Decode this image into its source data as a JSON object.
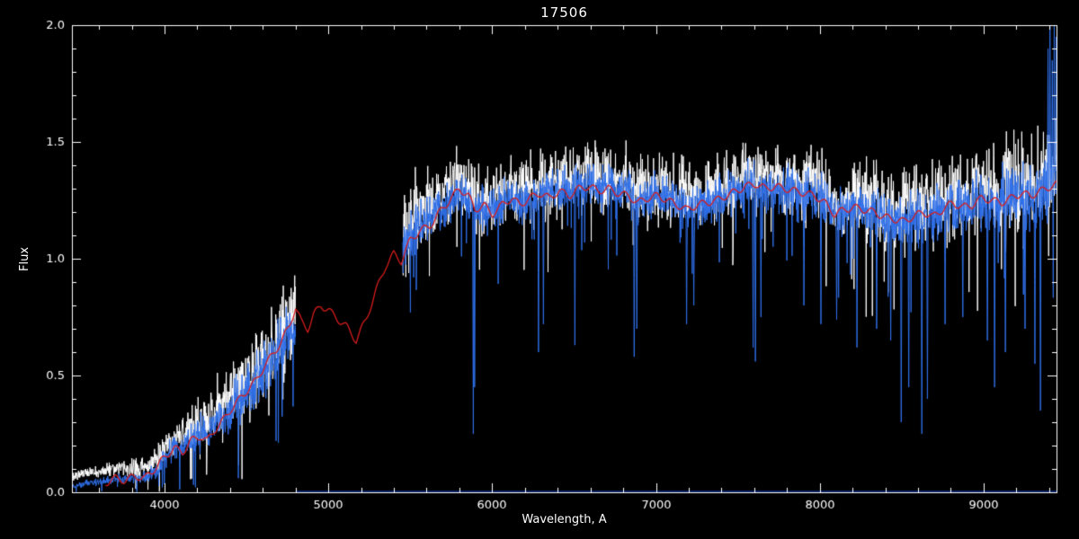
{
  "chart_data": {
    "type": "line",
    "title": "17506",
    "xlabel": "Wavelength, A",
    "ylabel": "Flux",
    "xlim": [
      3435,
      9445
    ],
    "ylim": [
      0,
      2
    ],
    "xticks": [
      4000,
      5000,
      6000,
      7000,
      8000,
      9000
    ],
    "xtick_labels": [
      "4000",
      "5000",
      "6000",
      "7000",
      "8000",
      "9000"
    ],
    "yticks": [
      0.0,
      0.5,
      1.0,
      1.5,
      2.0
    ],
    "ytick_labels": [
      "0.0",
      "0.5",
      "1.0",
      "1.5",
      "2.0"
    ],
    "x_minor_step": 200,
    "y_minor_step": 0.1,
    "grid": false,
    "legend": "none",
    "background": "#000000",
    "axis_color": "#ffffff",
    "sample_step": 2,
    "seed": 17506,
    "model": {
      "name": "template-model",
      "color": "#d81c1c",
      "wiggle_amp": 0.015,
      "wiggle_period": 15,
      "anchors": [
        [
          3640,
          0.04
        ],
        [
          3700,
          0.06
        ],
        [
          3760,
          0.05
        ],
        [
          3820,
          0.07
        ],
        [
          3880,
          0.06
        ],
        [
          3940,
          0.1
        ],
        [
          4000,
          0.15
        ],
        [
          4060,
          0.19
        ],
        [
          4110,
          0.17
        ],
        [
          4160,
          0.22
        ],
        [
          4220,
          0.24
        ],
        [
          4260,
          0.22
        ],
        [
          4310,
          0.27
        ],
        [
          4360,
          0.31
        ],
        [
          4410,
          0.36
        ],
        [
          4460,
          0.4
        ],
        [
          4510,
          0.44
        ],
        [
          4560,
          0.48
        ],
        [
          4610,
          0.54
        ],
        [
          4660,
          0.59
        ],
        [
          4710,
          0.64
        ],
        [
          4760,
          0.71
        ],
        [
          4800,
          0.79
        ],
        [
          4835,
          0.73
        ],
        [
          4875,
          0.7
        ],
        [
          4910,
          0.76
        ],
        [
          4955,
          0.8
        ],
        [
          5000,
          0.78
        ],
        [
          5060,
          0.74
        ],
        [
          5110,
          0.71
        ],
        [
          5170,
          0.65
        ],
        [
          5230,
          0.74
        ],
        [
          5290,
          0.86
        ],
        [
          5350,
          0.97
        ],
        [
          5400,
          1.02
        ],
        [
          5445,
          0.99
        ],
        [
          5500,
          1.08
        ],
        [
          5560,
          1.12
        ],
        [
          5620,
          1.14
        ],
        [
          5680,
          1.2
        ],
        [
          5740,
          1.25
        ],
        [
          5800,
          1.3
        ],
        [
          5855,
          1.27
        ],
        [
          5895,
          1.21
        ],
        [
          5950,
          1.23
        ],
        [
          6000,
          1.19
        ],
        [
          6060,
          1.23
        ],
        [
          6120,
          1.26
        ],
        [
          6170,
          1.23
        ],
        [
          6230,
          1.26
        ],
        [
          6290,
          1.28
        ],
        [
          6350,
          1.26
        ],
        [
          6410,
          1.29
        ],
        [
          6470,
          1.27
        ],
        [
          6530,
          1.3
        ],
        [
          6590,
          1.31
        ],
        [
          6650,
          1.29
        ],
        [
          6710,
          1.3
        ],
        [
          6770,
          1.28
        ],
        [
          6830,
          1.27
        ],
        [
          6890,
          1.24
        ],
        [
          6950,
          1.26
        ],
        [
          7010,
          1.27
        ],
        [
          7070,
          1.25
        ],
        [
          7130,
          1.23
        ],
        [
          7190,
          1.21
        ],
        [
          7250,
          1.23
        ],
        [
          7310,
          1.24
        ],
        [
          7370,
          1.25
        ],
        [
          7430,
          1.27
        ],
        [
          7490,
          1.29
        ],
        [
          7550,
          1.31
        ],
        [
          7610,
          1.32
        ],
        [
          7670,
          1.3
        ],
        [
          7730,
          1.31
        ],
        [
          7790,
          1.3
        ],
        [
          7850,
          1.29
        ],
        [
          7910,
          1.28
        ],
        [
          7970,
          1.27
        ],
        [
          8030,
          1.24
        ],
        [
          8090,
          1.19
        ],
        [
          8150,
          1.21
        ],
        [
          8210,
          1.22
        ],
        [
          8270,
          1.21
        ],
        [
          8330,
          1.2
        ],
        [
          8390,
          1.18
        ],
        [
          8450,
          1.17
        ],
        [
          8510,
          1.16
        ],
        [
          8570,
          1.18
        ],
        [
          8630,
          1.2
        ],
        [
          8690,
          1.18
        ],
        [
          8750,
          1.21
        ],
        [
          8810,
          1.24
        ],
        [
          8870,
          1.22
        ],
        [
          8930,
          1.23
        ],
        [
          8990,
          1.26
        ],
        [
          9050,
          1.25
        ],
        [
          9110,
          1.24
        ],
        [
          9170,
          1.26
        ],
        [
          9230,
          1.28
        ],
        [
          9290,
          1.27
        ],
        [
          9350,
          1.29
        ],
        [
          9410,
          1.31
        ],
        [
          9445,
          1.32
        ]
      ]
    },
    "observed": {
      "name": "observed-spectrum",
      "color": "#2f6fe8",
      "offset": 0,
      "amp_scale": 1.0,
      "deep_dip_chance": 0.025,
      "deep_dip_scale": 2.2,
      "segments": [
        {
          "range": [
            3435,
            4800
          ],
          "continuum": [
            [
              3435,
              0.02
            ],
            [
              3520,
              0.04
            ],
            [
              3600,
              0.04
            ],
            [
              3700,
              0.06
            ],
            [
              3800,
              0.06
            ],
            [
              3900,
              0.07
            ],
            [
              3960,
              0.1
            ],
            [
              4020,
              0.17
            ],
            [
              4080,
              0.2
            ],
            [
              4150,
              0.22
            ],
            [
              4220,
              0.24
            ],
            [
              4300,
              0.29
            ],
            [
              4380,
              0.34
            ],
            [
              4460,
              0.4
            ],
            [
              4540,
              0.47
            ],
            [
              4620,
              0.55
            ],
            [
              4700,
              0.62
            ],
            [
              4800,
              0.72
            ]
          ],
          "amplitude": [
            [
              3435,
              0.012
            ],
            [
              3700,
              0.018
            ],
            [
              3900,
              0.03
            ],
            [
              4050,
              0.05
            ],
            [
              4200,
              0.07
            ],
            [
              4350,
              0.09
            ],
            [
              4500,
              0.11
            ],
            [
              4650,
              0.12
            ],
            [
              4800,
              0.13
            ]
          ]
        },
        {
          "range": [
            5455,
            9445
          ],
          "continuum": [
            [
              5455,
              1.02
            ],
            [
              5520,
              1.12
            ],
            [
              5600,
              1.17
            ],
            [
              5700,
              1.22
            ],
            [
              5800,
              1.28
            ],
            [
              5900,
              1.22
            ],
            [
              6000,
              1.2
            ],
            [
              6100,
              1.26
            ],
            [
              6200,
              1.24
            ],
            [
              6300,
              1.28
            ],
            [
              6400,
              1.3
            ],
            [
              6500,
              1.3
            ],
            [
              6600,
              1.32
            ],
            [
              6700,
              1.3
            ],
            [
              6800,
              1.28
            ],
            [
              6900,
              1.25
            ],
            [
              7000,
              1.27
            ],
            [
              7100,
              1.24
            ],
            [
              7200,
              1.22
            ],
            [
              7300,
              1.24
            ],
            [
              7400,
              1.26
            ],
            [
              7500,
              1.3
            ],
            [
              7600,
              1.31
            ],
            [
              7700,
              1.3
            ],
            [
              7800,
              1.3
            ],
            [
              7900,
              1.28
            ],
            [
              8000,
              1.26
            ],
            [
              8100,
              1.2
            ],
            [
              8200,
              1.22
            ],
            [
              8300,
              1.2
            ],
            [
              8400,
              1.18
            ],
            [
              8500,
              1.16
            ],
            [
              8600,
              1.2
            ],
            [
              8700,
              1.18
            ],
            [
              8800,
              1.24
            ],
            [
              8900,
              1.22
            ],
            [
              9000,
              1.26
            ],
            [
              9100,
              1.24
            ],
            [
              9200,
              1.28
            ],
            [
              9300,
              1.26
            ],
            [
              9400,
              1.3
            ],
            [
              9445,
              1.32
            ]
          ],
          "amplitude": [
            [
              5455,
              0.12
            ],
            [
              5700,
              0.09
            ],
            [
              6500,
              0.09
            ],
            [
              7500,
              0.09
            ],
            [
              8300,
              0.1
            ],
            [
              8800,
              0.12
            ],
            [
              9445,
              0.14
            ]
          ]
        }
      ],
      "spikes_down": [
        [
          5885,
          0.25
        ],
        [
          5893,
          0.45
        ],
        [
          6283,
          0.6
        ],
        [
          6313,
          0.72
        ],
        [
          6505,
          0.63
        ],
        [
          6867,
          0.58
        ],
        [
          6882,
          0.7
        ],
        [
          7186,
          0.72
        ],
        [
          7230,
          0.8
        ],
        [
          7593,
          0.62
        ],
        [
          7607,
          0.56
        ],
        [
          7641,
          0.75
        ],
        [
          7903,
          0.8
        ],
        [
          8007,
          0.72
        ],
        [
          8103,
          0.74
        ],
        [
          8227,
          0.62
        ],
        [
          8347,
          0.7
        ],
        [
          8433,
          0.65
        ],
        [
          8497,
          0.3
        ],
        [
          8543,
          0.45
        ],
        [
          8623,
          0.25
        ],
        [
          8657,
          0.4
        ],
        [
          8765,
          0.72
        ],
        [
          8873,
          0.75
        ],
        [
          9023,
          0.65
        ],
        [
          9067,
          0.45
        ],
        [
          9133,
          0.6
        ],
        [
          9253,
          0.7
        ],
        [
          9313,
          0.55
        ],
        [
          9347,
          0.35
        ]
      ],
      "spikes_up": [
        [
          9392,
          1.9
        ],
        [
          9405,
          2.0
        ],
        [
          9418,
          1.85
        ],
        [
          9430,
          2.0
        ],
        [
          9442,
          1.95
        ]
      ]
    },
    "observed_raw": {
      "name": "observed-unsmoothed",
      "color": "#ffffff",
      "offset": 0.045,
      "amp_scale": 1.5,
      "deep_dip_chance": 0.015,
      "deep_dip_scale": 1.6
    },
    "zero_line": {
      "name": "sky-baseline",
      "color": "#1040c0",
      "from": 4800,
      "to": 9445,
      "flux": 0.004
    }
  }
}
